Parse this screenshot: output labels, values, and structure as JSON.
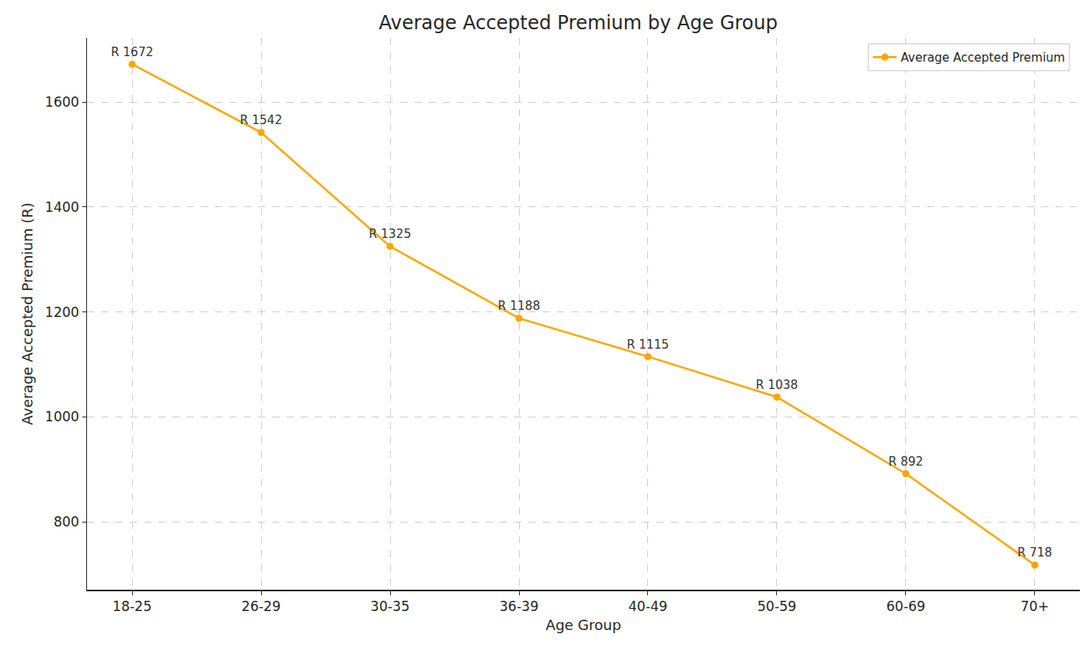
{
  "chart_data": {
    "type": "line",
    "title": "Average Accepted Premium by Age Group",
    "x_label": "Age Group",
    "y_label": "Average Accepted Premium (R)",
    "categories": [
      "18-25",
      "26-29",
      "30-35",
      "36-39",
      "40-49",
      "50-59",
      "60-69",
      "70+"
    ],
    "series": [
      {
        "name": "Average Accepted Premium",
        "color": "#ffa500",
        "marker": "circle",
        "values": [
          1672,
          1542,
          1325,
          1188,
          1115,
          1038,
          892,
          718
        ],
        "value_labels": [
          "R 1672",
          "R 1542",
          "R 1325",
          "R 1188",
          "R 1115",
          "R 1038",
          "R 892",
          "R 718"
        ]
      }
    ],
    "ylim": [
      671,
      1722
    ],
    "yticks": [
      800,
      1000,
      1200,
      1400,
      1600
    ],
    "grid": true,
    "legend": "upper right",
    "data_labels": true
  }
}
